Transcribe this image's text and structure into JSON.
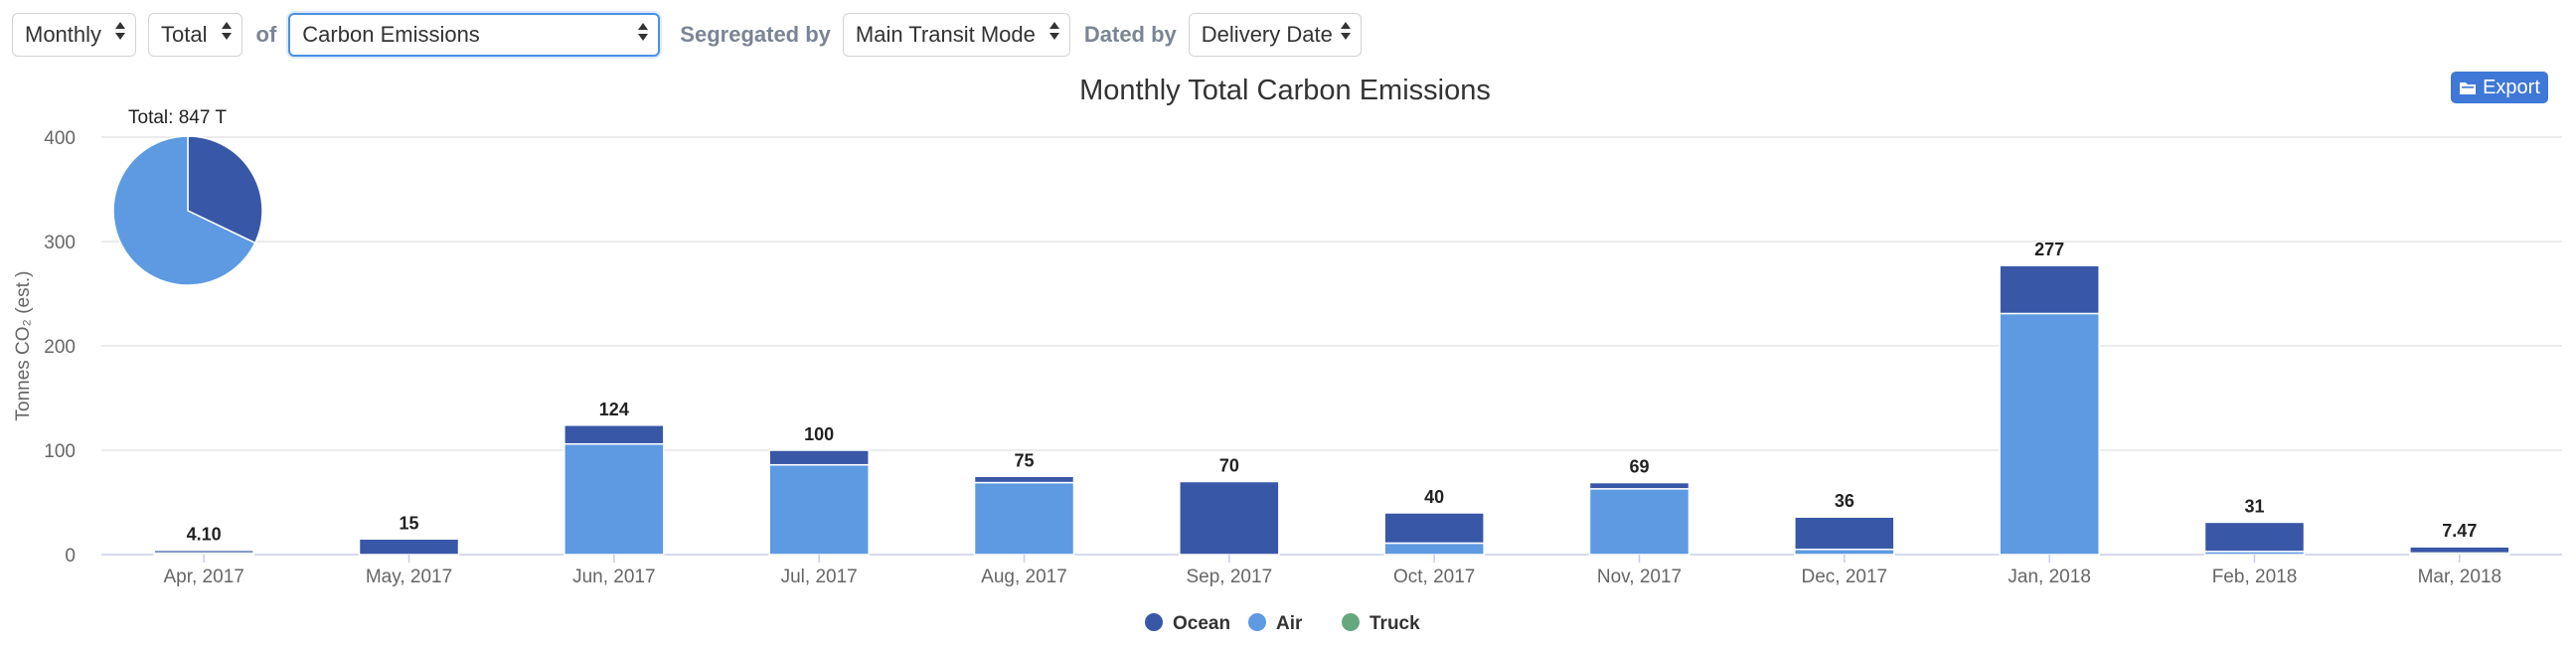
{
  "controls": {
    "period": "Monthly",
    "aggregate": "Total",
    "of_label": "of",
    "metric": "Carbon Emissions",
    "segregated_label": "Segregated by",
    "segregate": "Main Transit Mode",
    "dated_label": "Dated by",
    "date_field": "Delivery Date"
  },
  "export": {
    "label": "Export",
    "icon": "folder-icon"
  },
  "colors": {
    "ocean": "#3957a7",
    "air": "#5d9ae2",
    "truck": "#65a87f"
  },
  "chart_data": {
    "type": "bar",
    "stacked": true,
    "title": "Monthly Total Carbon Emissions",
    "ylabel": "Tonnes CO₂ (est.)",
    "ylim": [
      0,
      400
    ],
    "yticks": [
      0,
      100,
      200,
      300,
      400
    ],
    "categories": [
      "Apr, 2017",
      "May, 2017",
      "Jun, 2017",
      "Jul, 2017",
      "Aug, 2017",
      "Sep, 2017",
      "Oct, 2017",
      "Nov, 2017",
      "Dec, 2017",
      "Jan, 2018",
      "Feb, 2018",
      "Mar, 2018"
    ],
    "series": [
      {
        "name": "Air",
        "values": [
          1.5,
          0,
          106,
          86,
          69,
          0,
          11,
          63,
          5,
          231,
          3,
          1.5
        ]
      },
      {
        "name": "Ocean",
        "values": [
          2.6,
          15,
          18,
          14,
          6,
          70,
          29,
          6,
          31,
          46,
          28,
          5.97
        ]
      },
      {
        "name": "Truck",
        "values": [
          0,
          0,
          0,
          0,
          0,
          0,
          0,
          0,
          0,
          0,
          0,
          0
        ]
      }
    ],
    "totals": [
      "4.10",
      "15",
      "124",
      "100",
      "75",
      "70",
      "40",
      "69",
      "36",
      "277",
      "31",
      "7.47"
    ],
    "legend": [
      "Ocean",
      "Air",
      "Truck"
    ],
    "legend_position": "bottom-center",
    "pie": {
      "label": "Total: 847 T",
      "slices": [
        {
          "name": "Ocean",
          "value": 272
        },
        {
          "name": "Air",
          "value": 575
        },
        {
          "name": "Truck",
          "value": 0
        }
      ]
    }
  }
}
